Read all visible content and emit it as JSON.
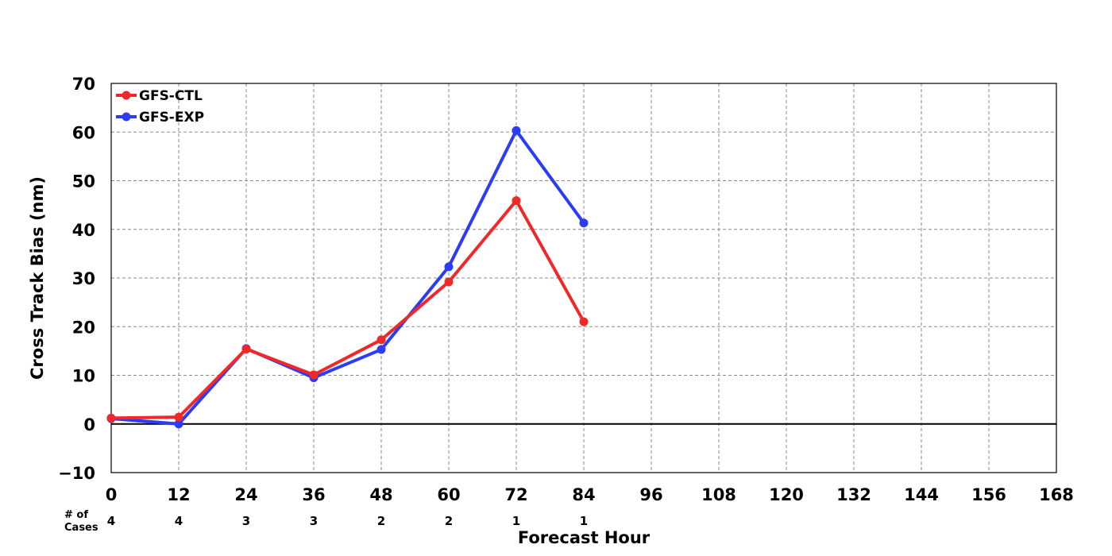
{
  "chart_data": {
    "type": "line",
    "xlabel": "Forecast Hour",
    "ylabel": "Cross Track Bias (nm)",
    "xlim": [
      0,
      168
    ],
    "ylim": [
      -10,
      70
    ],
    "x_ticks": [
      "0",
      "12",
      "24",
      "36",
      "48",
      "60",
      "72",
      "84",
      "96",
      "108",
      "120",
      "132",
      "144",
      "156",
      "168"
    ],
    "y_ticks": [
      "−10",
      "0",
      "10",
      "20",
      "30",
      "40",
      "50",
      "60",
      "70"
    ],
    "grid": true,
    "legend_position": "top-left",
    "cases_label_line1": "# of",
    "cases_label_line2": "Cases",
    "cases": [
      "4",
      "4",
      "3",
      "3",
      "2",
      "2",
      "1",
      "1"
    ],
    "x": [
      0,
      12,
      24,
      36,
      48,
      60,
      72,
      84
    ],
    "series": [
      {
        "name": "GFS-CTL",
        "color": "#f02828",
        "values": [
          1.2,
          1.4,
          15.4,
          10.1,
          17.3,
          29.2,
          45.9,
          21.0
        ]
      },
      {
        "name": "GFS-EXP",
        "color": "#2a3cf5",
        "values": [
          1.1,
          0.0,
          15.5,
          9.5,
          15.3,
          32.3,
          60.3,
          41.3
        ]
      }
    ]
  }
}
